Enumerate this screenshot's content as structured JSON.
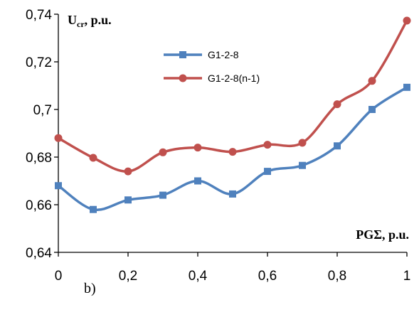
{
  "chart_data": {
    "type": "line",
    "x": [
      0,
      0.1,
      0.2,
      0.3,
      0.4,
      0.5,
      0.6,
      0.7,
      0.8,
      0.9,
      1.0
    ],
    "series": [
      {
        "name": "G1-2-8",
        "color": "#4F81BD",
        "marker": "square",
        "values": [
          0.668,
          0.658,
          0.662,
          0.664,
          0.67,
          0.6645,
          0.674,
          0.6765,
          0.6847,
          0.7,
          0.7093
        ]
      },
      {
        "name": "G1-2-8(n-1)",
        "color": "#C0504D",
        "marker": "circle",
        "values": [
          0.688,
          0.6797,
          0.674,
          0.682,
          0.684,
          0.6822,
          0.6852,
          0.686,
          0.7022,
          0.712,
          0.7373
        ]
      }
    ],
    "xlim": [
      0,
      1
    ],
    "ylim": [
      0.64,
      0.74
    ],
    "x_ticks": [
      "0",
      "0,2",
      "0,4",
      "0,6",
      "0,8",
      "1"
    ],
    "y_ticks": [
      "0,64",
      "0,66",
      "0,68",
      "0,7",
      "0,72",
      "0,74"
    ],
    "ylabel_main": "U",
    "ylabel_sub": "cr",
    "ylabel_rest": ", p.u.",
    "xlabel": "PGΣ, p.u.",
    "grid": false,
    "legend_position": "top-center",
    "caption": "b)"
  }
}
